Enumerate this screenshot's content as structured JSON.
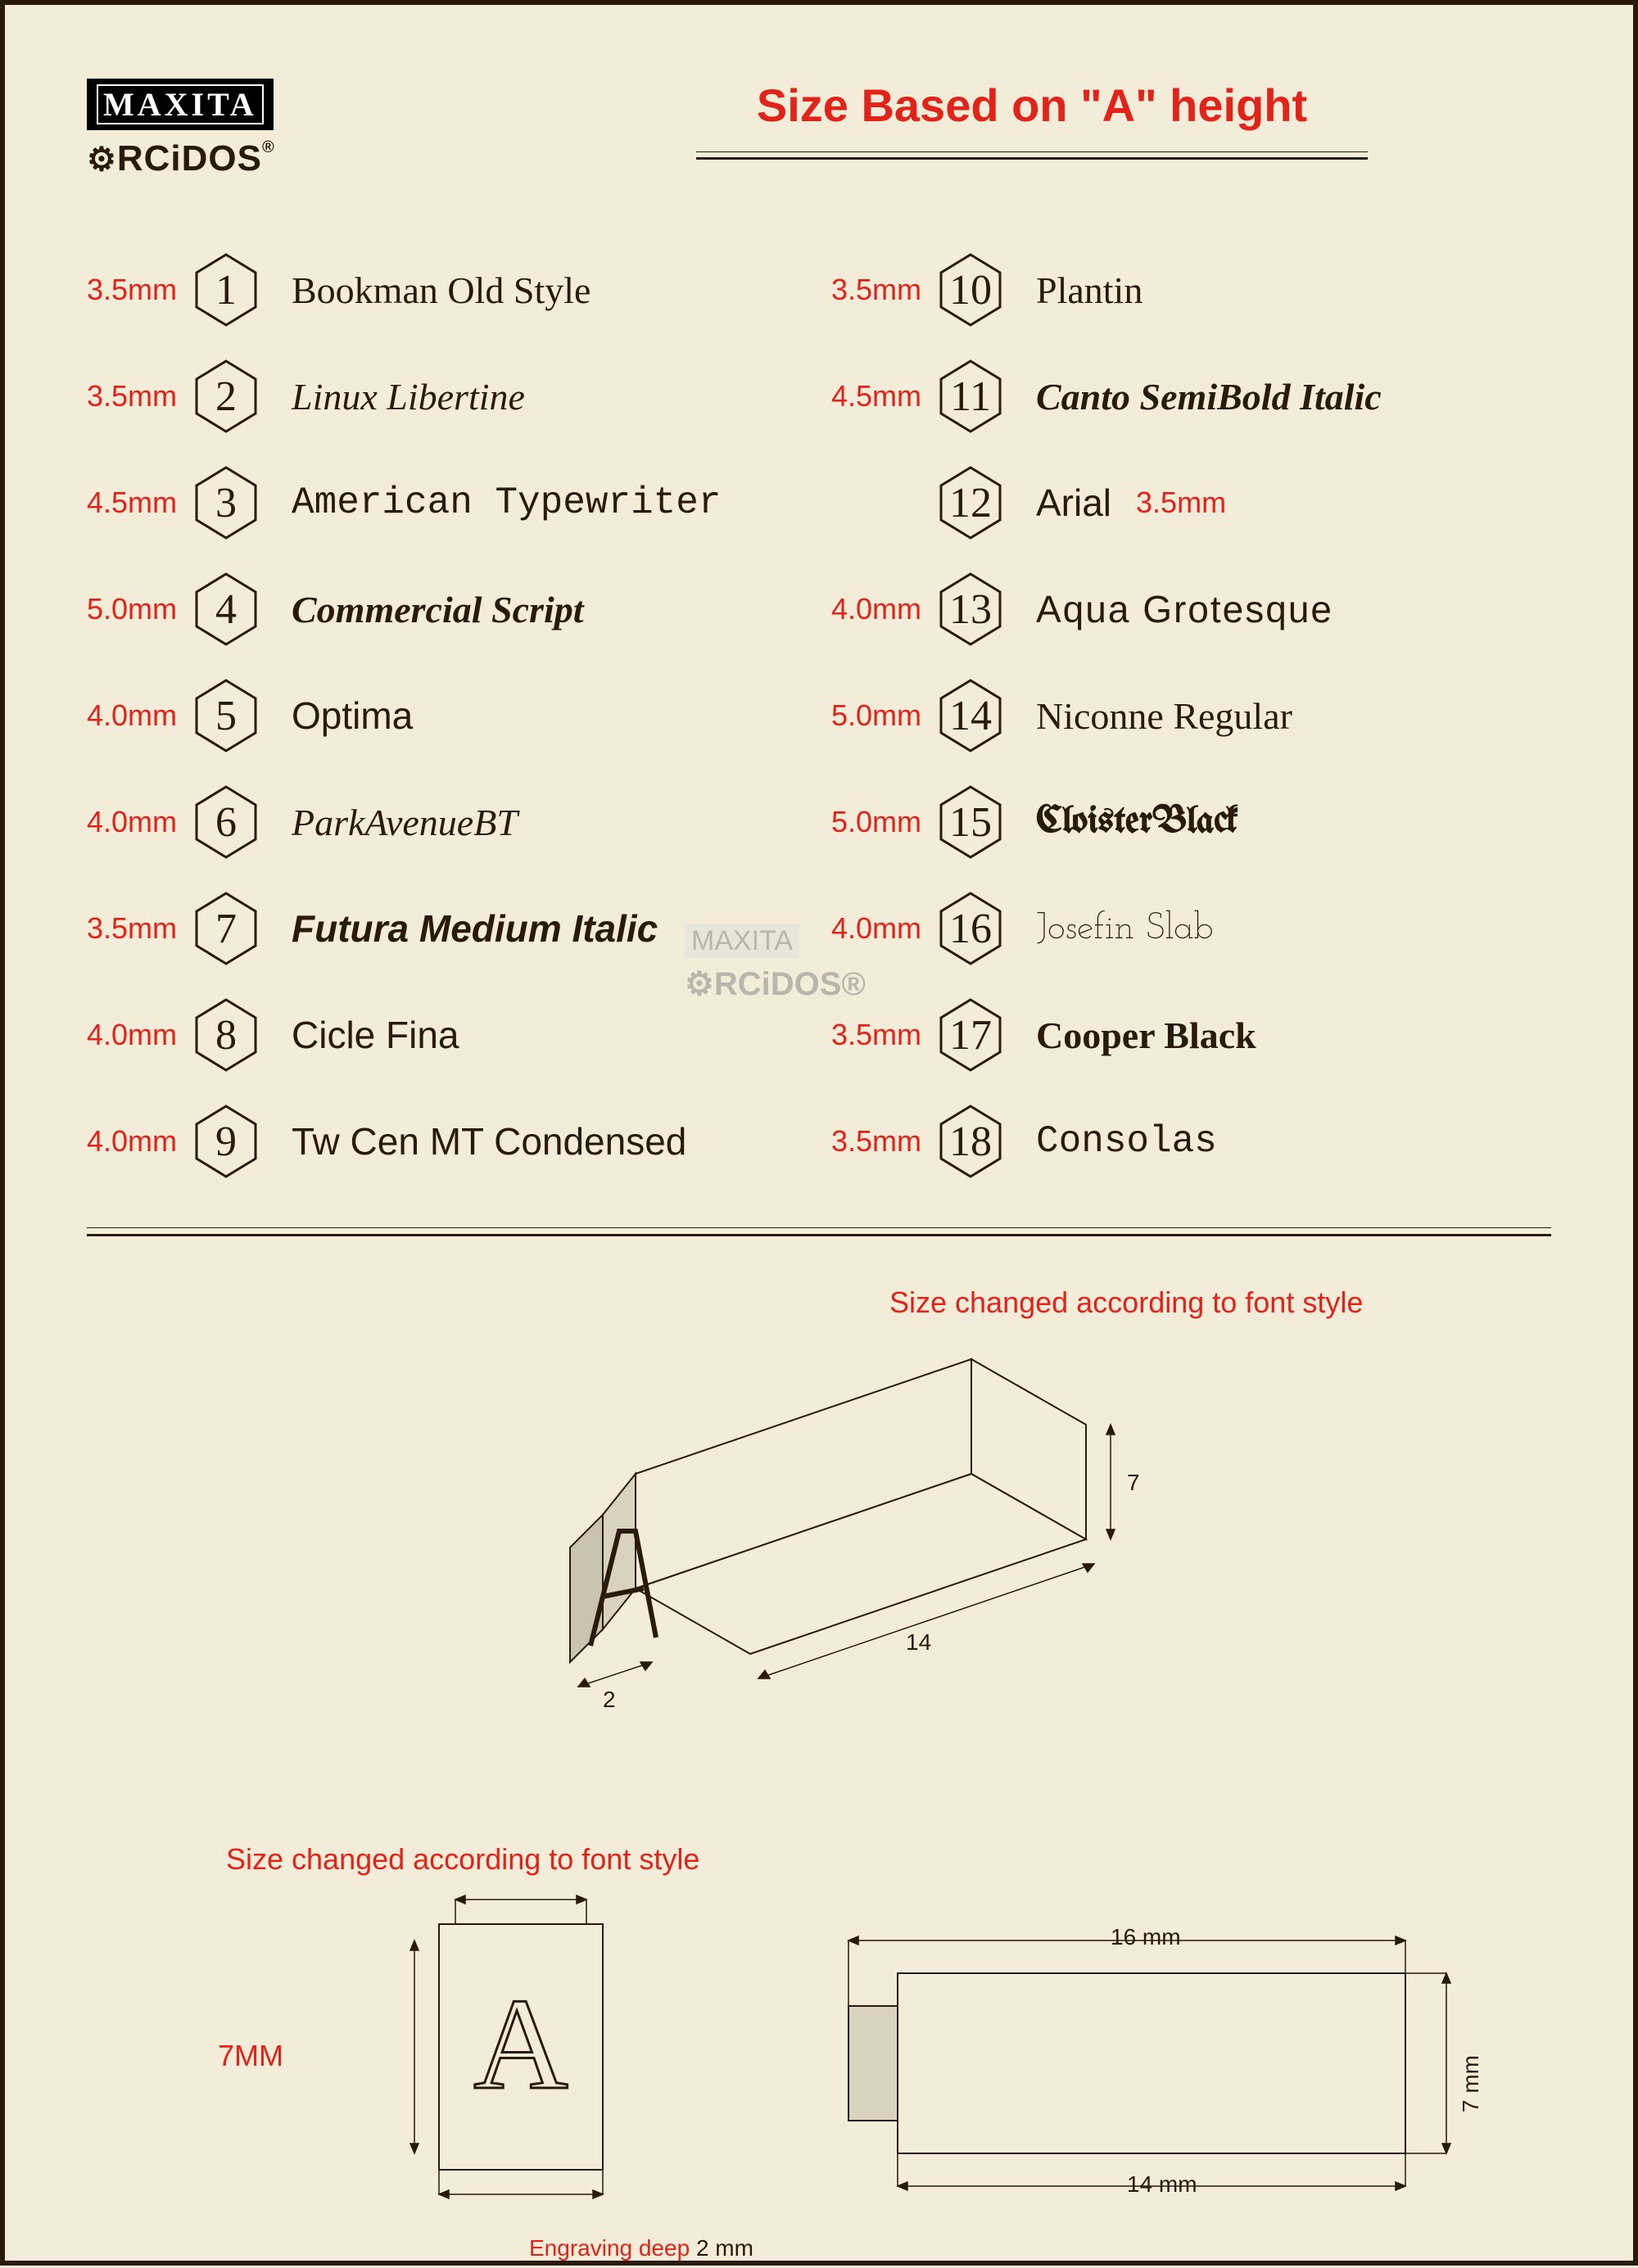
{
  "colors": {
    "bg": "#f2ecd9",
    "border": "#2a1a0a",
    "accent": "#e2231a",
    "text": "#2a1a0a"
  },
  "logos": {
    "maxita": "MAXITA",
    "rcidos": "RCiDOS",
    "registered": "®"
  },
  "title": "Size Based on \"A\" height",
  "fonts_left": [
    {
      "num": "1",
      "size": "3.5mm",
      "name": "Bookman Old Style",
      "cls": "f1"
    },
    {
      "num": "2",
      "size": "3.5mm",
      "name": "Linux Libertine",
      "cls": "f2"
    },
    {
      "num": "3",
      "size": "4.5mm",
      "name": "American Typewriter",
      "cls": "f3"
    },
    {
      "num": "4",
      "size": "5.0mm",
      "name": "Commercial Script",
      "cls": "f4"
    },
    {
      "num": "5",
      "size": "4.0mm",
      "name": "Optima",
      "cls": "f5"
    },
    {
      "num": "6",
      "size": "4.0mm",
      "name": "ParkAvenueBT",
      "cls": "f6"
    },
    {
      "num": "7",
      "size": "3.5mm",
      "name": "Futura Medium Italic",
      "cls": "f7"
    },
    {
      "num": "8",
      "size": "4.0mm",
      "name": "Cicle Fina",
      "cls": "f8"
    },
    {
      "num": "9",
      "size": "4.0mm",
      "name": "Tw Cen MT Condensed",
      "cls": "f9"
    }
  ],
  "fonts_right": [
    {
      "num": "10",
      "size": "3.5mm",
      "name": "Plantin",
      "cls": "f10",
      "pos": "before"
    },
    {
      "num": "11",
      "size": "4.5mm",
      "name": "Canto SemiBold Italic",
      "cls": "f11",
      "pos": "before"
    },
    {
      "num": "12",
      "size": "3.5mm",
      "name": "Arial",
      "cls": "f12",
      "pos": "after"
    },
    {
      "num": "13",
      "size": "4.0mm",
      "name": "Aqua Grotesque",
      "cls": "f13",
      "pos": "before"
    },
    {
      "num": "14",
      "size": "5.0mm",
      "name": "Niconne Regular",
      "cls": "f14",
      "pos": "before"
    },
    {
      "num": "15",
      "size": "5.0mm",
      "name": "CloisterBlack",
      "cls": "f15",
      "pos": "before"
    },
    {
      "num": "16",
      "size": "4.0mm",
      "name": "Josefin Slab",
      "cls": "f16",
      "pos": "before"
    },
    {
      "num": "17",
      "size": "3.5mm",
      "name": "Cooper Black",
      "cls": "f17",
      "pos": "before"
    },
    {
      "num": "18",
      "size": "3.5mm",
      "name": "Consolas",
      "cls": "f18",
      "pos": "before"
    }
  ],
  "watermark": {
    "line1": "MAXITA",
    "line2": "RCiDOS®"
  },
  "diagram": {
    "caption": "Size changed according to font style",
    "iso": {
      "depth": "14",
      "height": "7",
      "face_w": "2"
    },
    "front": {
      "height_label": "7MM",
      "letter": "A"
    },
    "side": {
      "total": "16 mm",
      "body": "14 mm",
      "height": "7 mm"
    },
    "engraving_label": "Engraving deep",
    "engraving_value": "2 mm"
  }
}
